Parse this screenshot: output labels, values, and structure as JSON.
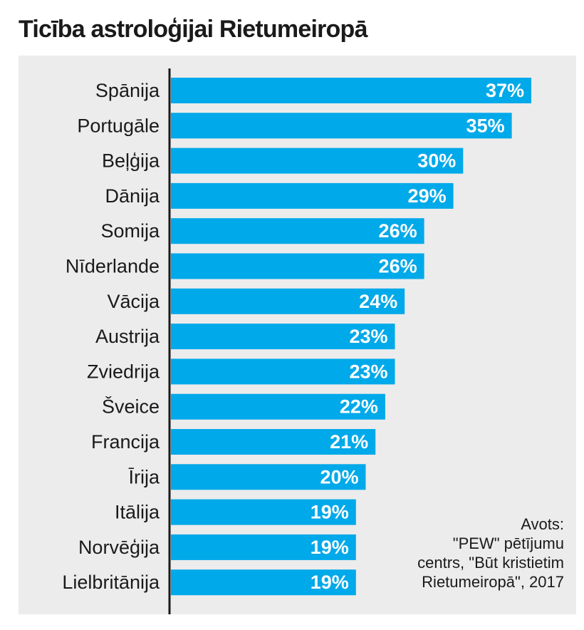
{
  "chart_data": {
    "type": "bar",
    "orientation": "horizontal",
    "title": "Ticība astroloģijai Rietumeiropā",
    "categories": [
      "Spānija",
      "Portugāle",
      "Beļģija",
      "Dānija",
      "Somija",
      "Nīderlande",
      "Vācija",
      "Austrija",
      "Zviedrija",
      "Šveice",
      "Francija",
      "Īrija",
      "Itālija",
      "Norvēģija",
      "Lielbritānija"
    ],
    "values": [
      37,
      35,
      30,
      29,
      26,
      26,
      24,
      23,
      23,
      22,
      21,
      20,
      19,
      19,
      19
    ],
    "value_labels": [
      "37%",
      "35%",
      "30%",
      "29%",
      "26%",
      "26%",
      "24%",
      "23%",
      "23%",
      "22%",
      "21%",
      "20%",
      "19%",
      "19%",
      "19%"
    ],
    "unit": "%",
    "xlim": [
      0,
      37
    ],
    "grid": false,
    "legend": "none",
    "bar_color": "#00a9e9",
    "panel_color": "#ececec"
  },
  "source": {
    "lines": [
      "Avots:",
      "\"PEW\" pētījumu",
      "centrs, \"Būt kristietim",
      "Rietumeiropā\", 2017"
    ]
  }
}
